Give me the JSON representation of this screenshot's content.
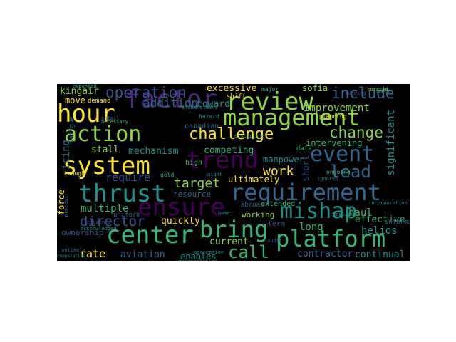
{
  "palette": {
    "purple": "#440154",
    "indigo": "#3b528b",
    "blue": "#31688e",
    "teal": "#21918c",
    "green": "#35b779",
    "lime": "#90d743",
    "yellow": "#fde725",
    "dark": "#482878"
  },
  "words": [
    {
      "text": "hour",
      "color": "#fde725"
    },
    {
      "text": "factor",
      "color": "#482878"
    },
    {
      "text": "review",
      "color": "#90d743"
    },
    {
      "text": "management",
      "color": "#90d743"
    },
    {
      "text": "include",
      "color": "#31688e"
    },
    {
      "text": "operation",
      "color": "#3b528b"
    },
    {
      "text": "action",
      "color": "#90d743"
    },
    {
      "text": "challenge",
      "color": "#fde725"
    },
    {
      "text": "change",
      "color": "#90d743"
    },
    {
      "text": "system",
      "color": "#fde725"
    },
    {
      "text": "trend",
      "color": "#440154"
    },
    {
      "text": "event",
      "color": "#31688e"
    },
    {
      "text": "lead",
      "color": "#31688e"
    },
    {
      "text": "thrust",
      "color": "#21918c"
    },
    {
      "text": "ensure",
      "color": "#440154"
    },
    {
      "text": "requirement",
      "color": "#31688e"
    },
    {
      "text": "mishap",
      "color": "#21918c"
    },
    {
      "text": "center",
      "color": "#35b779"
    },
    {
      "text": "bring",
      "color": "#35b779"
    },
    {
      "text": "platform",
      "color": "#35b779"
    },
    {
      "text": "call",
      "color": "#35b779"
    },
    {
      "text": "director",
      "color": "#3b528b"
    },
    {
      "text": "target",
      "color": "#90d743"
    },
    {
      "text": "work",
      "color": "#fde725"
    },
    {
      "text": "kingair",
      "color": "#90d743"
    },
    {
      "text": "excessive",
      "color": "#fde725"
    },
    {
      "text": "sofia",
      "color": "#90d743"
    },
    {
      "text": "move",
      "color": "#fde725"
    },
    {
      "text": "addition",
      "color": "#31688e"
    },
    {
      "text": "toward",
      "color": "#21918c"
    },
    {
      "text": "improvement",
      "color": "#90d743"
    },
    {
      "text": "significant",
      "color": "#21918c"
    },
    {
      "text": "icing",
      "color": "#31688e"
    },
    {
      "text": "stall",
      "color": "#90d743"
    },
    {
      "text": "canadian",
      "color": "#31688e"
    },
    {
      "text": "mechanism",
      "color": "#21918c"
    },
    {
      "text": "competing",
      "color": "#35b779"
    },
    {
      "text": "intervening",
      "color": "#35b779"
    },
    {
      "text": "manpower",
      "color": "#21918c"
    },
    {
      "text": "require",
      "color": "#3b528b"
    },
    {
      "text": "short",
      "color": "#3b528b"
    },
    {
      "text": "force",
      "color": "#fde725"
    },
    {
      "text": "ultimately",
      "color": "#fde725"
    },
    {
      "text": "resource",
      "color": "#31688e"
    },
    {
      "text": "multiple",
      "color": "#35b779"
    },
    {
      "text": "quickly",
      "color": "#fde725"
    },
    {
      "text": "haul",
      "color": "#35b779"
    },
    {
      "text": "effective",
      "color": "#35b779"
    },
    {
      "text": "helios",
      "color": "#21918c"
    },
    {
      "text": "long",
      "color": "#35b779"
    },
    {
      "text": "term",
      "color": "#3b528b"
    },
    {
      "text": "ownership",
      "color": "#3b528b"
    },
    {
      "text": "current",
      "color": "#90d743"
    },
    {
      "text": "contractor",
      "color": "#31688e"
    },
    {
      "text": "continual",
      "color": "#21918c"
    },
    {
      "text": "rate",
      "color": "#fde725"
    },
    {
      "text": "aviation",
      "color": "#31688e"
    },
    {
      "text": "enables",
      "color": "#21918c"
    },
    {
      "text": "extended",
      "color": "#35b779"
    },
    {
      "text": "working",
      "color": "#90d743"
    },
    {
      "text": "abroad",
      "color": "#31688e"
    },
    {
      "text": "data",
      "color": "#35b779"
    },
    {
      "text": "demand",
      "color": "#fde725"
    },
    {
      "text": "high",
      "color": "#35b779"
    },
    {
      "text": "uniform",
      "color": "#31688e"
    },
    {
      "text": "major",
      "color": "#35b779"
    },
    {
      "text": "informal",
      "color": "#31688e"
    },
    {
      "text": "ignored",
      "color": "#31688e"
    },
    {
      "text": "planning",
      "color": "#fde725"
    },
    {
      "text": "discipline",
      "color": "#35b779"
    },
    {
      "text": "hazard",
      "color": "#21918c"
    },
    {
      "text": "home",
      "color": "#21918c"
    },
    {
      "text": "common",
      "color": "#90d743"
    },
    {
      "text": "perception",
      "color": "#21918c"
    },
    {
      "text": "implementation",
      "color": "#21918c"
    },
    {
      "text": "regulator",
      "color": "#21918c"
    },
    {
      "text": "ongoing",
      "color": "#35b779"
    },
    {
      "text": "gold",
      "color": "#35b779"
    },
    {
      "text": "enough",
      "color": "#fde725"
    },
    {
      "text": "elements",
      "color": "#3b528b"
    },
    {
      "text": "stakeholders",
      "color": "#21918c"
    },
    {
      "text": "incorporation",
      "color": "#21918c"
    },
    {
      "text": "rotated",
      "color": "#90d743"
    },
    {
      "text": "fatigue",
      "color": "#31688e"
    },
    {
      "text": "shift",
      "color": "#fde725"
    },
    {
      "text": "night",
      "color": "#21918c"
    },
    {
      "text": "expanded",
      "color": "#35b779"
    },
    {
      "text": "process",
      "color": "#31688e"
    },
    {
      "text": "acknowledged",
      "color": "#21918c"
    },
    {
      "text": "cooperative",
      "color": "#21918c"
    },
    {
      "text": "entail",
      "color": "#31688e"
    },
    {
      "text": "simple",
      "color": "#21918c"
    },
    {
      "text": "necessary",
      "color": "#35b779"
    },
    {
      "text": "unlikely",
      "color": "#31688e"
    },
    {
      "text": "audit",
      "color": "#3b528b"
    },
    {
      "text": "funding",
      "color": "#3b528b"
    }
  ]
}
